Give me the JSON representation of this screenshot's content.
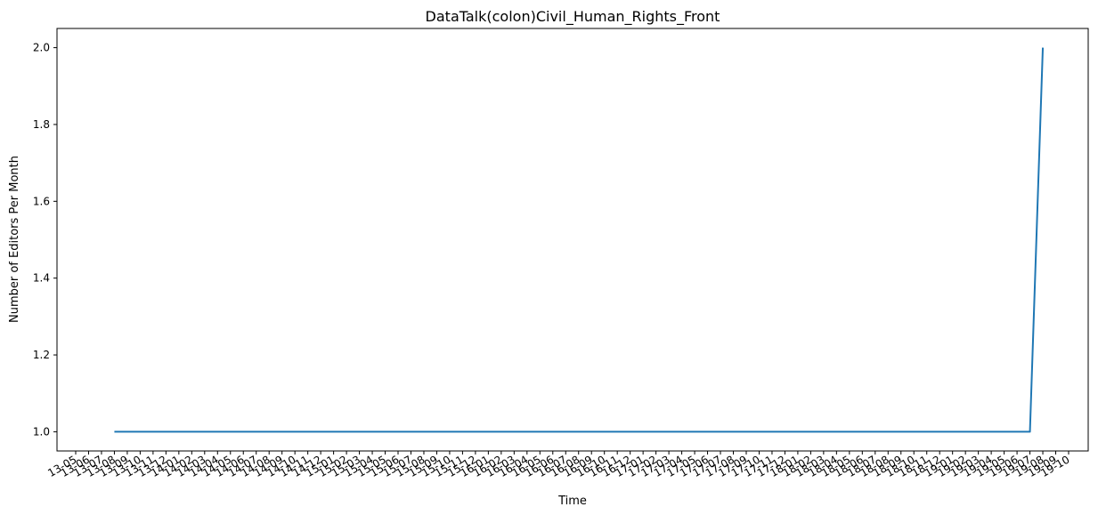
{
  "chart_data": {
    "type": "line",
    "title": "DataTalk(colon)Civil_Human_Rights_Front",
    "xlabel": "Time",
    "ylabel": "Number of Editors Per Month",
    "x_tick_labels": [
      "13-05",
      "13-06",
      "13-07",
      "13-08",
      "13-09",
      "13-10",
      "13-11",
      "13-12",
      "14-01",
      "14-02",
      "14-03",
      "14-04",
      "14-05",
      "14-06",
      "14-07",
      "14-08",
      "14-09",
      "14-10",
      "14-11",
      "14-12",
      "15-01",
      "15-02",
      "15-03",
      "15-04",
      "15-05",
      "15-06",
      "15-07",
      "15-08",
      "15-09",
      "15-10",
      "15-11",
      "15-12",
      "16-01",
      "16-02",
      "16-03",
      "16-04",
      "16-05",
      "16-06",
      "16-07",
      "16-08",
      "16-09",
      "16-10",
      "16-11",
      "16-12",
      "17-01",
      "17-02",
      "17-03",
      "17-04",
      "17-05",
      "17-06",
      "17-07",
      "17-08",
      "17-09",
      "17-10",
      "17-11",
      "17-12",
      "18-01",
      "18-02",
      "18-03",
      "18-04",
      "18-05",
      "18-06",
      "18-07",
      "18-08",
      "18-09",
      "18-10",
      "18-11",
      "18-12",
      "19-01",
      "19-02",
      "19-03",
      "19-04",
      "19-05",
      "19-06",
      "19-07",
      "19-08",
      "19-09",
      "19-10"
    ],
    "y_ticks": [
      1.0,
      1.2,
      1.4,
      1.6,
      1.8,
      2.0
    ],
    "y_tick_labels": [
      "1.0",
      "1.2",
      "1.4",
      "1.6",
      "1.8",
      "2.0"
    ],
    "ylim": [
      0.95,
      2.05
    ],
    "series": [
      {
        "color": "#1f77b4",
        "x": [
          "13-08",
          "13-09",
          "13-10",
          "13-11",
          "13-12",
          "14-01",
          "14-02",
          "14-03",
          "14-04",
          "14-05",
          "14-06",
          "14-07",
          "14-08",
          "14-09",
          "14-10",
          "14-11",
          "14-12",
          "15-01",
          "15-02",
          "15-03",
          "15-04",
          "15-05",
          "15-06",
          "15-07",
          "15-08",
          "15-09",
          "15-10",
          "15-11",
          "15-12",
          "16-01",
          "16-02",
          "16-03",
          "16-04",
          "16-05",
          "16-06",
          "16-07",
          "16-08",
          "16-09",
          "16-10",
          "16-11",
          "16-12",
          "17-01",
          "17-02",
          "17-03",
          "17-04",
          "17-05",
          "17-06",
          "17-07",
          "17-08",
          "17-09",
          "17-10",
          "17-11",
          "17-12",
          "18-01",
          "18-02",
          "18-03",
          "18-04",
          "18-05",
          "18-06",
          "18-07",
          "18-08",
          "18-09",
          "18-10",
          "18-11",
          "18-12",
          "19-01",
          "19-02",
          "19-03",
          "19-04",
          "19-05",
          "19-06",
          "19-07",
          "19-08"
        ],
        "values": [
          1,
          1,
          1,
          1,
          1,
          1,
          1,
          1,
          1,
          1,
          1,
          1,
          1,
          1,
          1,
          1,
          1,
          1,
          1,
          1,
          1,
          1,
          1,
          1,
          1,
          1,
          1,
          1,
          1,
          1,
          1,
          1,
          1,
          1,
          1,
          1,
          1,
          1,
          1,
          1,
          1,
          1,
          1,
          1,
          1,
          1,
          1,
          1,
          1,
          1,
          1,
          1,
          1,
          1,
          1,
          1,
          1,
          1,
          1,
          1,
          1,
          1,
          1,
          1,
          1,
          1,
          1,
          1,
          1,
          1,
          1,
          1,
          2
        ]
      }
    ]
  }
}
